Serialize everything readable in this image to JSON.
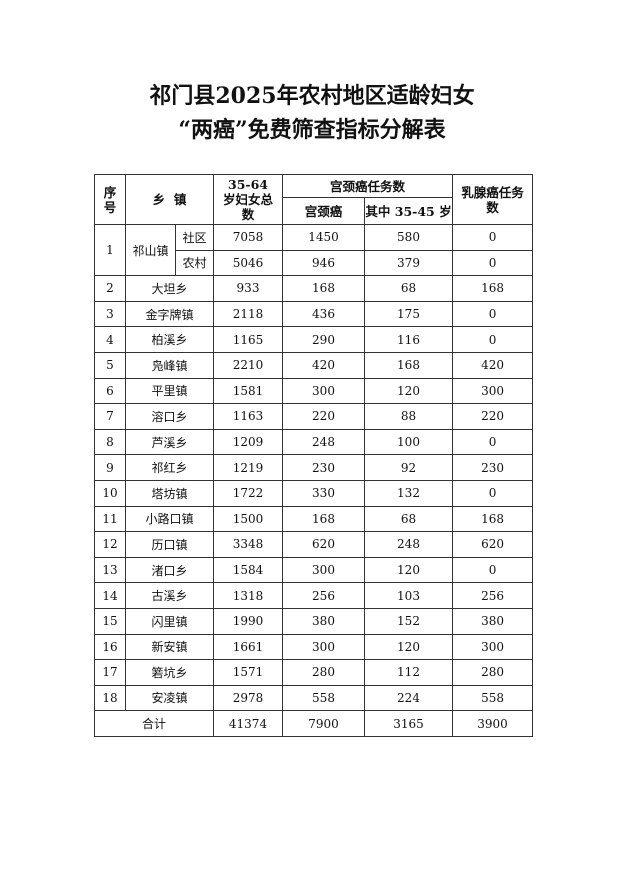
{
  "title": {
    "line1": "祁门县2025年农村地区适龄妇女",
    "line2": "“两癌”免费筛查指标分解表"
  },
  "headers": {
    "seq": "序号",
    "town": "乡  镇",
    "total": "35-64 岁妇女总数",
    "cervical_group": "宫颈癌任务数",
    "cervical": "宫颈癌",
    "cervical_35_45": "其中 35-45 岁",
    "breast": "乳腺癌任务数"
  },
  "row1": {
    "seq": "1",
    "town": "祁山镇",
    "sub": [
      {
        "name": "社区",
        "total": "7058",
        "cervical": "1450",
        "cervical_35_45": "580",
        "breast": "0"
      },
      {
        "name": "农村",
        "total": "5046",
        "cervical": "946",
        "cervical_35_45": "379",
        "breast": "0"
      }
    ]
  },
  "rows": [
    {
      "seq": "2",
      "town": "大坦乡",
      "total": "933",
      "cervical": "168",
      "cervical_35_45": "68",
      "breast": "168"
    },
    {
      "seq": "3",
      "town": "金字牌镇",
      "total": "2118",
      "cervical": "436",
      "cervical_35_45": "175",
      "breast": "0"
    },
    {
      "seq": "4",
      "town": "柏溪乡",
      "total": "1165",
      "cervical": "290",
      "cervical_35_45": "116",
      "breast": "0"
    },
    {
      "seq": "5",
      "town": "凫峰镇",
      "total": "2210",
      "cervical": "420",
      "cervical_35_45": "168",
      "breast": "420"
    },
    {
      "seq": "6",
      "town": "平里镇",
      "total": "1581",
      "cervical": "300",
      "cervical_35_45": "120",
      "breast": "300"
    },
    {
      "seq": "7",
      "town": "溶口乡",
      "total": "1163",
      "cervical": "220",
      "cervical_35_45": "88",
      "breast": "220"
    },
    {
      "seq": "8",
      "town": "芦溪乡",
      "total": "1209",
      "cervical": "248",
      "cervical_35_45": "100",
      "breast": "0"
    },
    {
      "seq": "9",
      "town": "祁红乡",
      "total": "1219",
      "cervical": "230",
      "cervical_35_45": "92",
      "breast": "230"
    },
    {
      "seq": "10",
      "town": "塔坊镇",
      "total": "1722",
      "cervical": "330",
      "cervical_35_45": "132",
      "breast": "0"
    },
    {
      "seq": "11",
      "town": "小路口镇",
      "total": "1500",
      "cervical": "168",
      "cervical_35_45": "68",
      "breast": "168"
    },
    {
      "seq": "12",
      "town": "历口镇",
      "total": "3348",
      "cervical": "620",
      "cervical_35_45": "248",
      "breast": "620"
    },
    {
      "seq": "13",
      "town": "渚口乡",
      "total": "1584",
      "cervical": "300",
      "cervical_35_45": "120",
      "breast": "0"
    },
    {
      "seq": "14",
      "town": "古溪乡",
      "total": "1318",
      "cervical": "256",
      "cervical_35_45": "103",
      "breast": "256"
    },
    {
      "seq": "15",
      "town": "闪里镇",
      "total": "1990",
      "cervical": "380",
      "cervical_35_45": "152",
      "breast": "380"
    },
    {
      "seq": "16",
      "town": "新安镇",
      "total": "1661",
      "cervical": "300",
      "cervical_35_45": "120",
      "breast": "300"
    },
    {
      "seq": "17",
      "town": "箬坑乡",
      "total": "1571",
      "cervical": "280",
      "cervical_35_45": "112",
      "breast": "280"
    },
    {
      "seq": "18",
      "town": "安凌镇",
      "total": "2978",
      "cervical": "558",
      "cervical_35_45": "224",
      "breast": "558"
    }
  ],
  "total_row": {
    "label": "合计",
    "total": "41374",
    "cervical": "7900",
    "cervical_35_45": "3165",
    "breast": "3900"
  }
}
